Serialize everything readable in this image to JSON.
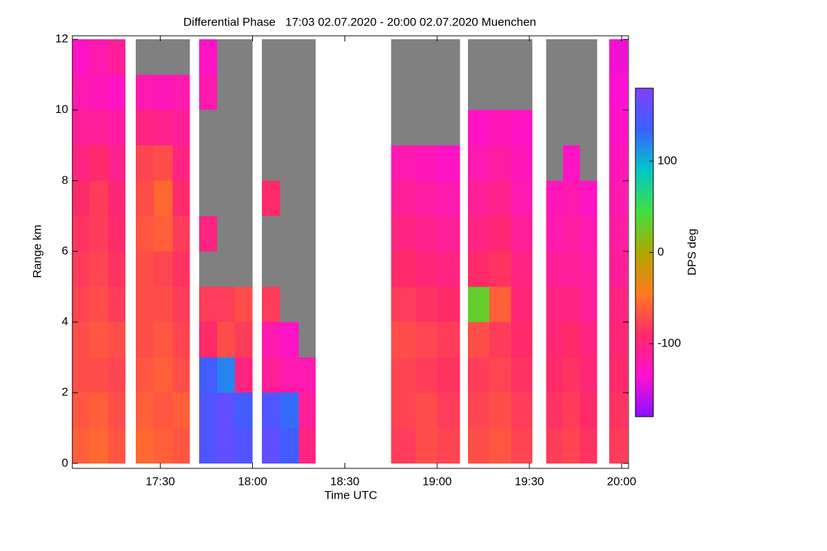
{
  "chart_data": {
    "type": "heatmap",
    "title": "Differential Phase   17:03 02.07.2020 - 20:00 02.07.2020 Muenchen",
    "x_label": "Time UTC",
    "y_label": "Range km",
    "colorbar_label": "DPS deg",
    "xlim": [
      1021.4,
      1202.25
    ],
    "xticks": [
      {
        "value": 1050,
        "label": "17:30"
      },
      {
        "value": 1080,
        "label": "18:00"
      },
      {
        "value": 1110,
        "label": "18:30"
      },
      {
        "value": 1140,
        "label": "19:00"
      },
      {
        "value": 1170,
        "label": "19:30"
      },
      {
        "value": 1200,
        "label": "20:00"
      }
    ],
    "ylim": [
      -0.14,
      12.1
    ],
    "yticks": [
      0,
      2,
      4,
      6,
      8,
      10,
      12
    ],
    "clim": [
      -180,
      180
    ],
    "cticks": [
      100,
      0,
      -100
    ],
    "colormap": [
      "#8a10ff",
      "#ff10d0",
      "#ff2a6a",
      "#ff7a20",
      "#b0a800",
      "#40e040",
      "#00c8c8",
      "#3a60ff",
      "#8040ff"
    ],
    "null_color": "#808080",
    "y_bins": [
      0,
      1,
      2,
      3,
      4,
      5,
      6,
      7,
      8,
      9,
      10,
      11,
      12
    ],
    "x_intervals": [
      [
        1021.4,
        1027
      ],
      [
        1027,
        1033
      ],
      [
        1033,
        1038.7
      ],
      [
        1042,
        1048
      ],
      [
        1048,
        1054
      ],
      [
        1054,
        1059.6
      ],
      [
        1062.6,
        1068.5
      ],
      [
        1068.5,
        1074.3
      ],
      [
        1074.3,
        1080
      ],
      [
        1083,
        1089
      ],
      [
        1089,
        1095
      ],
      [
        1095,
        1100.5
      ],
      [
        1125,
        1133
      ],
      [
        1133,
        1140
      ],
      [
        1140,
        1147.5
      ],
      [
        1150,
        1157
      ],
      [
        1157,
        1164
      ],
      [
        1164,
        1171
      ],
      [
        1175.5,
        1181
      ],
      [
        1181,
        1186.5
      ],
      [
        1186.5,
        1192
      ],
      [
        1196,
        1202
      ]
    ],
    "values": [
      [
        -60,
        -65,
        -70,
        -70,
        -75,
        -80,
        -85,
        -90,
        -100,
        -110,
        -120,
        -130
      ],
      [
        -55,
        -60,
        -70,
        -65,
        -70,
        -75,
        -80,
        -80,
        -90,
        -110,
        -125,
        -120
      ],
      [
        -65,
        -70,
        -75,
        -70,
        -80,
        -85,
        -90,
        -95,
        -105,
        -115,
        -130,
        -110
      ],
      [
        -55,
        -60,
        -65,
        -70,
        -70,
        -70,
        -65,
        -70,
        -75,
        -100,
        -120,
        null
      ],
      [
        -60,
        -65,
        -60,
        -65,
        -70,
        -75,
        -60,
        -55,
        -70,
        -105,
        -125,
        null
      ],
      [
        -65,
        -60,
        -70,
        -75,
        -80,
        -85,
        -80,
        -90,
        -100,
        -110,
        -120,
        null
      ],
      [
        150,
        150,
        140,
        -90,
        -80,
        null,
        -100,
        null,
        null,
        null,
        -120,
        -130
      ],
      [
        160,
        160,
        120,
        -70,
        -80,
        null,
        null,
        null,
        null,
        null,
        null,
        null
      ],
      [
        150,
        140,
        -100,
        -80,
        -70,
        null,
        null,
        null,
        null,
        null,
        null,
        null
      ],
      [
        160,
        150,
        -110,
        -120,
        -80,
        null,
        null,
        -90,
        null,
        null,
        null,
        null
      ],
      [
        140,
        130,
        -120,
        -130,
        null,
        null,
        null,
        null,
        null,
        null,
        null,
        null
      ],
      [
        -100,
        -110,
        -120,
        null,
        null,
        null,
        null,
        null,
        null,
        null,
        null,
        null
      ],
      [
        -80,
        -75,
        -75,
        -70,
        -80,
        -90,
        -100,
        -110,
        -120,
        null,
        null,
        null
      ],
      [
        -70,
        -70,
        -80,
        -75,
        -85,
        -95,
        -105,
        -115,
        -125,
        null,
        null,
        null
      ],
      [
        -75,
        -80,
        -85,
        -80,
        -90,
        -100,
        -110,
        -120,
        -130,
        null,
        null,
        null
      ],
      [
        -70,
        -75,
        -80,
        -70,
        30,
        -90,
        -100,
        -110,
        -120,
        -130,
        null,
        null
      ],
      [
        -65,
        -70,
        -75,
        -80,
        -60,
        -85,
        -95,
        -105,
        -115,
        -125,
        null,
        null
      ],
      [
        -75,
        -80,
        -85,
        -90,
        -95,
        -100,
        -110,
        -120,
        -125,
        -130,
        null,
        null
      ],
      [
        -80,
        -85,
        -90,
        -95,
        -100,
        -110,
        -120,
        -125,
        null,
        null,
        null,
        null
      ],
      [
        -75,
        -80,
        -85,
        -90,
        -100,
        -110,
        -115,
        -120,
        -130,
        null,
        null,
        null
      ],
      [
        -85,
        -90,
        -95,
        -100,
        -110,
        -115,
        -120,
        -130,
        null,
        null,
        null,
        null
      ],
      [
        -80,
        -85,
        -90,
        -95,
        -100,
        -110,
        -115,
        -120,
        -125,
        -130,
        -135,
        -140
      ]
    ]
  }
}
